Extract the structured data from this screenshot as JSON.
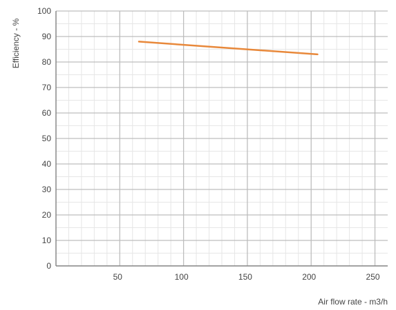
{
  "chart_data": {
    "type": "line",
    "title": "",
    "xlabel": "Air flow rate - m3/h",
    "ylabel": "Efficiency - %",
    "xlim": [
      0,
      260
    ],
    "ylim": [
      0,
      100
    ],
    "x_ticks": [
      50,
      100,
      150,
      200,
      250
    ],
    "y_ticks": [
      0,
      10,
      20,
      30,
      40,
      50,
      60,
      70,
      80,
      90,
      100
    ],
    "x_minor_step": 10,
    "y_minor_step": 5,
    "grid": true,
    "legend": "none",
    "series": [
      {
        "color": "#e8883a",
        "points": [
          {
            "x": 65,
            "y": 88
          },
          {
            "x": 205,
            "y": 83
          }
        ]
      }
    ],
    "colors": {
      "major_grid": "#bdbdbd",
      "minor_grid": "#e6e6e6",
      "axis": "#888888",
      "text": "#444444"
    }
  }
}
